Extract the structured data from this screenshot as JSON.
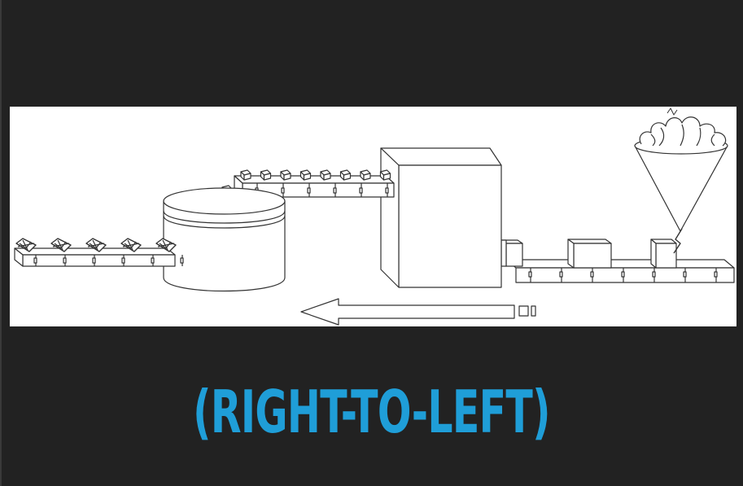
{
  "caption": {
    "text": "(RIGHT-TO-LEFT)",
    "color": "#1f9ed8"
  },
  "colors": {
    "background": "#222222",
    "panel": "#ffffff",
    "line": "#333333"
  },
  "diagram": {
    "flow_direction": "right-to-left",
    "stages": [
      {
        "name": "funnel-hopper",
        "icon": "funnel-icon"
      },
      {
        "name": "processing-machine",
        "icon": "machine-box-icon"
      },
      {
        "name": "mixing-tank",
        "icon": "tank-icon"
      }
    ],
    "conveyor_boxes_right": 3,
    "upper_belt_cubes": 8,
    "lower_left_items": 5
  }
}
